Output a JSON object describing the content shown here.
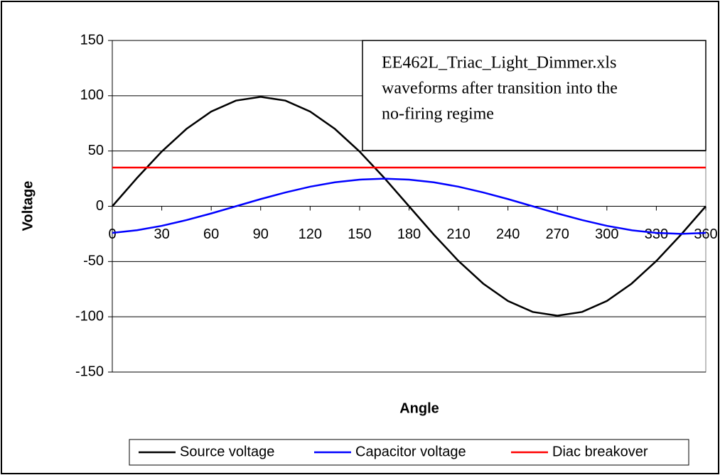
{
  "chart_data": {
    "type": "line",
    "annotation": [
      "EE462L_Triac_Light_Dimmer.xls",
      "waveforms after transition into the",
      "no-firing regime"
    ],
    "x_label": "Angle",
    "y_label": "Voltage",
    "x": [
      0,
      15,
      30,
      45,
      60,
      75,
      90,
      105,
      120,
      135,
      150,
      165,
      180,
      195,
      210,
      225,
      240,
      255,
      270,
      285,
      300,
      315,
      330,
      345,
      360
    ],
    "series": [
      {
        "name": "Source voltage",
        "color": "#000000",
        "values": [
          0,
          25.6,
          49.5,
          70.0,
          85.7,
          95.6,
          99,
          95.6,
          85.7,
          70.0,
          49.5,
          25.6,
          0,
          -25.6,
          -49.5,
          -70.0,
          -85.7,
          -95.6,
          -99,
          -95.6,
          -85.7,
          -70.0,
          -49.5,
          -25.6,
          0
        ]
      },
      {
        "name": "Capacitor voltage",
        "color": "#0000ff",
        "values": [
          -24.1,
          -21.7,
          -17.7,
          -12.5,
          -6.5,
          0,
          6.5,
          12.5,
          17.7,
          21.7,
          24.1,
          25,
          24.1,
          21.7,
          17.7,
          12.5,
          6.5,
          0,
          -6.5,
          -12.5,
          -17.7,
          -21.7,
          -24.1,
          -25,
          -24.1
        ]
      },
      {
        "name": "Diac breakover",
        "color": "#ff0000",
        "values": [
          35,
          35,
          35,
          35,
          35,
          35,
          35,
          35,
          35,
          35,
          35,
          35,
          35,
          35,
          35,
          35,
          35,
          35,
          35,
          35,
          35,
          35,
          35,
          35,
          35
        ]
      }
    ],
    "xlim": [
      0,
      360
    ],
    "xticks": [
      0,
      30,
      60,
      90,
      120,
      150,
      180,
      210,
      240,
      270,
      300,
      330,
      360
    ],
    "ylim": [
      -150,
      150
    ],
    "yticks": [
      -150,
      -100,
      -50,
      0,
      50,
      100,
      150
    ],
    "grid": true,
    "legend": "bottom"
  }
}
